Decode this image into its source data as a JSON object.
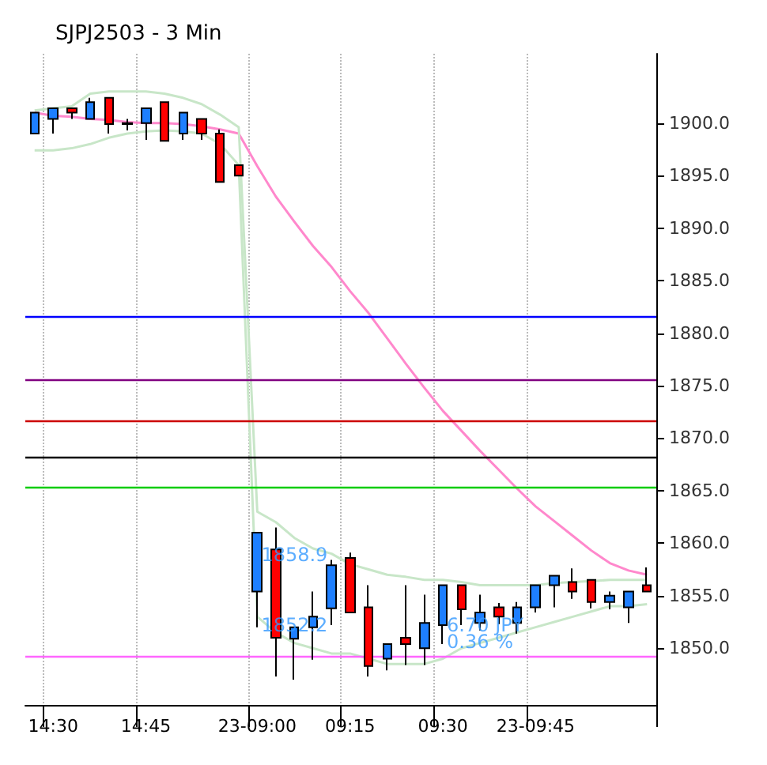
{
  "chart_data": {
    "type": "candlestick",
    "title": "SJPJ2503 - 3 Min",
    "categories": [
      null,
      "14:30",
      null,
      null,
      null,
      null,
      "14:45",
      null,
      null,
      null,
      null,
      null,
      "23-09:00",
      null,
      null,
      null,
      null,
      "09:15",
      null,
      null,
      null,
      null,
      "09:30",
      null,
      null,
      null,
      null,
      "23-09:45",
      null,
      null,
      null,
      null,
      null,
      null
    ],
    "ohlc": [
      [
        1899.0,
        1901.0,
        1899.0,
        1901.0
      ],
      [
        1900.4,
        1901.4,
        1899.0,
        1901.4
      ],
      [
        1901.4,
        1901.4,
        1900.4,
        1901.0
      ],
      [
        1900.4,
        1902.4,
        1900.4,
        1902.0
      ],
      [
        1902.4,
        1902.4,
        1899.0,
        1899.9
      ],
      [
        1900.0,
        1900.4,
        1899.3,
        1899.9
      ],
      [
        1900.0,
        1901.4,
        1898.4,
        1901.4
      ],
      [
        1902.0,
        1902.0,
        1898.3,
        1898.3
      ],
      [
        1899.0,
        1901.0,
        1898.4,
        1901.0
      ],
      [
        1900.4,
        1900.4,
        1898.4,
        1899.0
      ],
      [
        1899.0,
        1899.4,
        1894.4,
        1894.4
      ],
      [
        1896.0,
        1896.0,
        1895.0,
        1895.0
      ],
      [
        1855.4,
        1861.0,
        1852.0,
        1861.0
      ],
      [
        1859.4,
        1861.5,
        1847.3,
        1851.0
      ],
      [
        1850.9,
        1852.0,
        1847.0,
        1852.0
      ],
      [
        1852.0,
        1855.4,
        1848.9,
        1853.0
      ],
      [
        1853.8,
        1858.4,
        1852.2,
        1857.9
      ],
      [
        1858.6,
        1859.1,
        1853.4,
        1853.4
      ],
      [
        1853.9,
        1856.0,
        1847.3,
        1848.3
      ],
      [
        1849.0,
        1850.4,
        1847.9,
        1850.4
      ],
      [
        1851.0,
        1856.0,
        1848.4,
        1850.4
      ],
      [
        1850.0,
        1855.1,
        1848.4,
        1852.4
      ],
      [
        1852.2,
        1856.0,
        1850.4,
        1856.0
      ],
      [
        1856.0,
        1856.0,
        1852.2,
        1853.7
      ],
      [
        1852.4,
        1855.1,
        1851.7,
        1853.4
      ],
      [
        1853.9,
        1854.3,
        1852.3,
        1853.0
      ],
      [
        1852.4,
        1854.4,
        1851.4,
        1853.9
      ],
      [
        1853.9,
        1856.0,
        1853.4,
        1856.0
      ],
      [
        1856.0,
        1856.9,
        1853.9,
        1856.9
      ],
      [
        1856.3,
        1857.6,
        1854.7,
        1855.4
      ],
      [
        1856.5,
        1856.5,
        1853.8,
        1854.4
      ],
      [
        1854.4,
        1855.4,
        1853.7,
        1855.0
      ],
      [
        1853.9,
        1855.4,
        1852.4,
        1855.4
      ],
      [
        1856.0,
        1857.7,
        1855.4,
        1855.4
      ]
    ],
    "series": [
      {
        "type": "line",
        "color": "#ff88cc",
        "values": [
          1901.0,
          1900.7,
          1900.6,
          1900.4,
          1900.3,
          1900.1,
          1900.0,
          1900.0,
          1899.9,
          1899.7,
          1899.4,
          1899.0,
          1895.9,
          1893.0,
          1890.6,
          1888.3,
          1886.3,
          1884.0,
          1881.9,
          1879.5,
          1877.1,
          1874.8,
          1872.6,
          1870.7,
          1868.8,
          1867.0,
          1865.2,
          1863.5,
          1862.1,
          1860.7,
          1859.3,
          1858.1,
          1857.4,
          1857.0
        ]
      },
      {
        "type": "line",
        "color": "#c8e6c8",
        "values": [
          1901.2,
          1901.4,
          1901.6,
          1902.8,
          1903.0,
          1903.0,
          1903.0,
          1902.8,
          1902.4,
          1901.8,
          1900.8,
          1899.6,
          1863.0,
          1862.0,
          1860.5,
          1859.5,
          1859.0,
          1858.0,
          1857.5,
          1857.0,
          1856.8,
          1856.5,
          1856.5,
          1856.3,
          1856.0,
          1856.0,
          1856.0,
          1856.0,
          1856.2,
          1856.3,
          1856.4,
          1856.5,
          1856.5,
          1856.5
        ]
      },
      {
        "type": "line",
        "color": "#c8e6c8",
        "values": [
          1897.4,
          1897.4,
          1897.6,
          1898.0,
          1898.6,
          1899.0,
          1899.2,
          1899.3,
          1899.2,
          1899.0,
          1898.0,
          1896.0,
          1853.0,
          1851.5,
          1850.5,
          1850.0,
          1849.5,
          1849.5,
          1849.0,
          1848.5,
          1848.5,
          1848.5,
          1849.0,
          1850.0,
          1850.5,
          1851.0,
          1851.5,
          1852.0,
          1852.5,
          1853.0,
          1853.5,
          1854.0,
          1854.0,
          1854.2
        ]
      }
    ],
    "ylim": [
      1844.6,
      1906.6
    ],
    "yticks": [
      {
        "value": 1850,
        "label": "1850.0"
      },
      {
        "value": 1855,
        "label": "1855.0"
      },
      {
        "value": 1860,
        "label": "1860.0"
      },
      {
        "value": 1865,
        "label": "1865.0"
      },
      {
        "value": 1870,
        "label": "1870.0"
      },
      {
        "value": 1875,
        "label": "1875.0"
      },
      {
        "value": 1880,
        "label": "1880.0"
      },
      {
        "value": 1885,
        "label": "1885.0"
      },
      {
        "value": 1890,
        "label": "1890.0"
      },
      {
        "value": 1895,
        "label": "1895.0"
      },
      {
        "value": 1900,
        "label": "1900.0"
      }
    ],
    "ref_lines": [
      {
        "axis": "y",
        "value": 1881.6,
        "color": "#0000ff",
        "line_style": "solid"
      },
      {
        "axis": "y",
        "value": 1875.5,
        "color": "#800080",
        "line_style": "solid"
      },
      {
        "axis": "y",
        "value": 1871.7,
        "color": "#cc0000",
        "line_style": "solid"
      },
      {
        "axis": "y",
        "value": 1868.2,
        "color": "#000000",
        "line_style": "solid"
      },
      {
        "axis": "y",
        "value": 1865.4,
        "color": "#00cc00",
        "line_style": "solid"
      },
      {
        "axis": "y",
        "value": 1849.3,
        "color": "#ff66ff",
        "line_style": "solid"
      }
    ],
    "annotations": [
      {
        "text": "1858.9",
        "x": "23-09:00",
        "y": 1858.9
      },
      {
        "text": "1852.2",
        "x": "23-09:00",
        "y": 1852.2
      },
      {
        "text": "6.70 JPY",
        "x": "09:30",
        "y": 1852.2
      },
      {
        "text": "0.36 %",
        "x": "09:30",
        "y": 1850.6
      }
    ],
    "grid": "x"
  }
}
